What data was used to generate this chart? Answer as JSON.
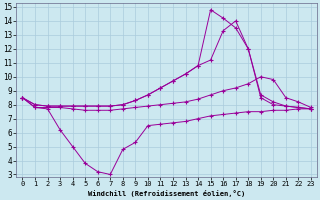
{
  "xlabel": "Windchill (Refroidissement éolien,°C)",
  "bg_color": "#cce8f0",
  "grid_color": "#aaccdd",
  "line_color": "#990099",
  "xlim": [
    -0.5,
    23.5
  ],
  "ylim": [
    2.8,
    15.3
  ],
  "xticks": [
    0,
    1,
    2,
    3,
    4,
    5,
    6,
    7,
    8,
    9,
    10,
    11,
    12,
    13,
    14,
    15,
    16,
    17,
    18,
    19,
    20,
    21,
    22,
    23
  ],
  "yticks": [
    3,
    4,
    5,
    6,
    7,
    8,
    9,
    10,
    11,
    12,
    13,
    14,
    15
  ],
  "lines": [
    {
      "x": [
        0,
        1,
        2,
        3,
        4,
        5,
        6,
        7,
        8,
        9,
        10,
        11,
        12,
        13,
        14,
        15,
        16,
        17,
        18,
        19,
        20,
        21,
        22,
        23
      ],
      "y": [
        8.5,
        7.8,
        7.7,
        6.2,
        5.0,
        3.8,
        3.2,
        3.0,
        4.8,
        5.3,
        6.5,
        6.6,
        6.7,
        6.8,
        7.0,
        7.2,
        7.3,
        7.4,
        7.5,
        7.5,
        7.6,
        7.6,
        7.7,
        7.7
      ]
    },
    {
      "x": [
        0,
        1,
        2,
        3,
        4,
        5,
        6,
        7,
        8,
        9,
        10,
        11,
        12,
        13,
        14,
        15,
        16,
        17,
        18,
        19,
        20,
        21,
        22,
        23
      ],
      "y": [
        8.5,
        7.8,
        7.8,
        7.8,
        7.7,
        7.6,
        7.6,
        7.6,
        7.7,
        7.8,
        7.9,
        8.0,
        8.1,
        8.2,
        8.4,
        8.7,
        9.0,
        9.2,
        9.5,
        10.0,
        9.8,
        8.5,
        8.2,
        7.8
      ]
    },
    {
      "x": [
        0,
        1,
        2,
        3,
        4,
        5,
        6,
        7,
        8,
        9,
        10,
        11,
        12,
        13,
        14,
        15,
        16,
        17,
        18,
        19,
        20,
        21,
        22,
        23
      ],
      "y": [
        8.5,
        8.0,
        7.9,
        7.9,
        7.9,
        7.9,
        7.9,
        7.9,
        8.0,
        8.3,
        8.7,
        9.2,
        9.7,
        10.2,
        10.8,
        11.2,
        13.3,
        14.0,
        12.0,
        8.5,
        8.0,
        7.9,
        7.8,
        7.7
      ]
    },
    {
      "x": [
        0,
        1,
        2,
        3,
        4,
        5,
        6,
        7,
        8,
        9,
        10,
        11,
        12,
        13,
        14,
        15,
        16,
        17,
        18,
        19,
        20,
        21,
        22,
        23
      ],
      "y": [
        8.5,
        8.0,
        7.9,
        7.9,
        7.9,
        7.9,
        7.9,
        7.9,
        8.0,
        8.3,
        8.7,
        9.2,
        9.7,
        10.2,
        10.8,
        14.8,
        14.2,
        13.5,
        12.0,
        8.7,
        8.2,
        7.9,
        7.8,
        7.7
      ]
    }
  ]
}
